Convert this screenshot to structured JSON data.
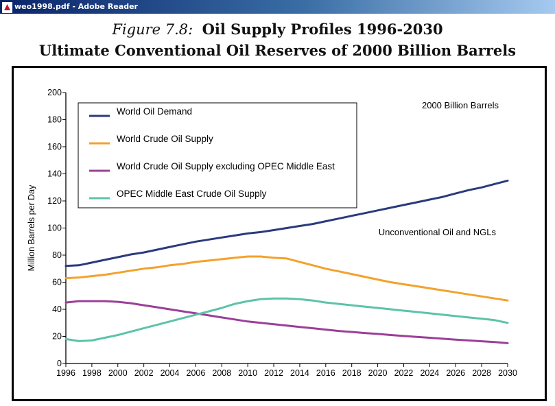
{
  "window": {
    "title": "weo1998.pdf - Adobe Reader",
    "icon": "pdf-icon"
  },
  "figure": {
    "label": "Figure 7.8:",
    "title": "Oil Supply Profiles 1996-2030",
    "subtitle": "Ultimate Conventional Oil Reserves of 2000 Billion Barrels"
  },
  "chart_data": {
    "type": "line",
    "ylabel": "Million Barrels per Day",
    "xlabel": "",
    "ylim": [
      0,
      200
    ],
    "xlim": [
      1996,
      2030
    ],
    "yticks": [
      0,
      20,
      40,
      60,
      80,
      100,
      120,
      140,
      160,
      180,
      200
    ],
    "xticks": [
      1996,
      1998,
      2000,
      2002,
      2004,
      2006,
      2008,
      2010,
      2012,
      2014,
      2016,
      2018,
      2020,
      2022,
      2024,
      2026,
      2028,
      2030
    ],
    "grid": false,
    "legend_position": "top-left",
    "annotations": [
      "2000 Billion Barrels",
      "Unconventional Oil and NGLs"
    ],
    "x": [
      1996,
      1997,
      1998,
      1999,
      2000,
      2001,
      2002,
      2003,
      2004,
      2005,
      2006,
      2007,
      2008,
      2009,
      2010,
      2011,
      2012,
      2013,
      2014,
      2015,
      2016,
      2017,
      2018,
      2019,
      2020,
      2021,
      2022,
      2023,
      2024,
      2025,
      2026,
      2027,
      2028,
      2029,
      2030
    ],
    "series": [
      {
        "name": "World Oil Demand",
        "color": "#2b3a7e",
        "values": [
          72,
          72.5,
          74.5,
          76.5,
          78.5,
          80.5,
          82,
          84,
          86,
          88,
          90,
          91.5,
          93,
          94.5,
          96,
          97,
          98.5,
          100,
          101.5,
          103,
          105,
          107,
          109,
          111,
          113,
          115,
          117,
          119,
          121,
          123,
          125.5,
          128,
          130,
          132.5,
          135
        ]
      },
      {
        "name": "World Crude Oil Supply",
        "color": "#f4a12b",
        "values": [
          63,
          63.5,
          64.5,
          65.5,
          67,
          68.5,
          70,
          71,
          72.5,
          73.5,
          75,
          76,
          77,
          78,
          79,
          79,
          78,
          77.5,
          75,
          72.5,
          70,
          68,
          66,
          64,
          62,
          60,
          58.5,
          57,
          55.5,
          54,
          52.5,
          51,
          49.5,
          48,
          46.5
        ]
      },
      {
        "name": "World Crude Oil Supply excluding OPEC Middle East",
        "color": "#9b3f98",
        "values": [
          45,
          46,
          46,
          46,
          45.5,
          44.5,
          43,
          41.5,
          40,
          38.5,
          37,
          35.5,
          34,
          32.5,
          31,
          30,
          29,
          28,
          27,
          26,
          25,
          24,
          23.3,
          22.5,
          21.8,
          21,
          20.3,
          19.6,
          19,
          18.3,
          17.6,
          17,
          16.4,
          15.8,
          15
        ]
      },
      {
        "name": "OPEC Middle East Crude Oil Supply",
        "color": "#5cc3a8",
        "values": [
          18,
          16.5,
          17,
          19,
          21,
          23.5,
          26,
          28.5,
          31,
          33.5,
          36,
          38.5,
          41,
          44,
          46,
          47.5,
          48,
          48,
          47.5,
          46.5,
          45,
          44,
          43,
          42,
          41,
          40,
          39,
          38,
          37,
          36,
          35,
          34,
          33,
          32,
          30
        ]
      }
    ]
  }
}
